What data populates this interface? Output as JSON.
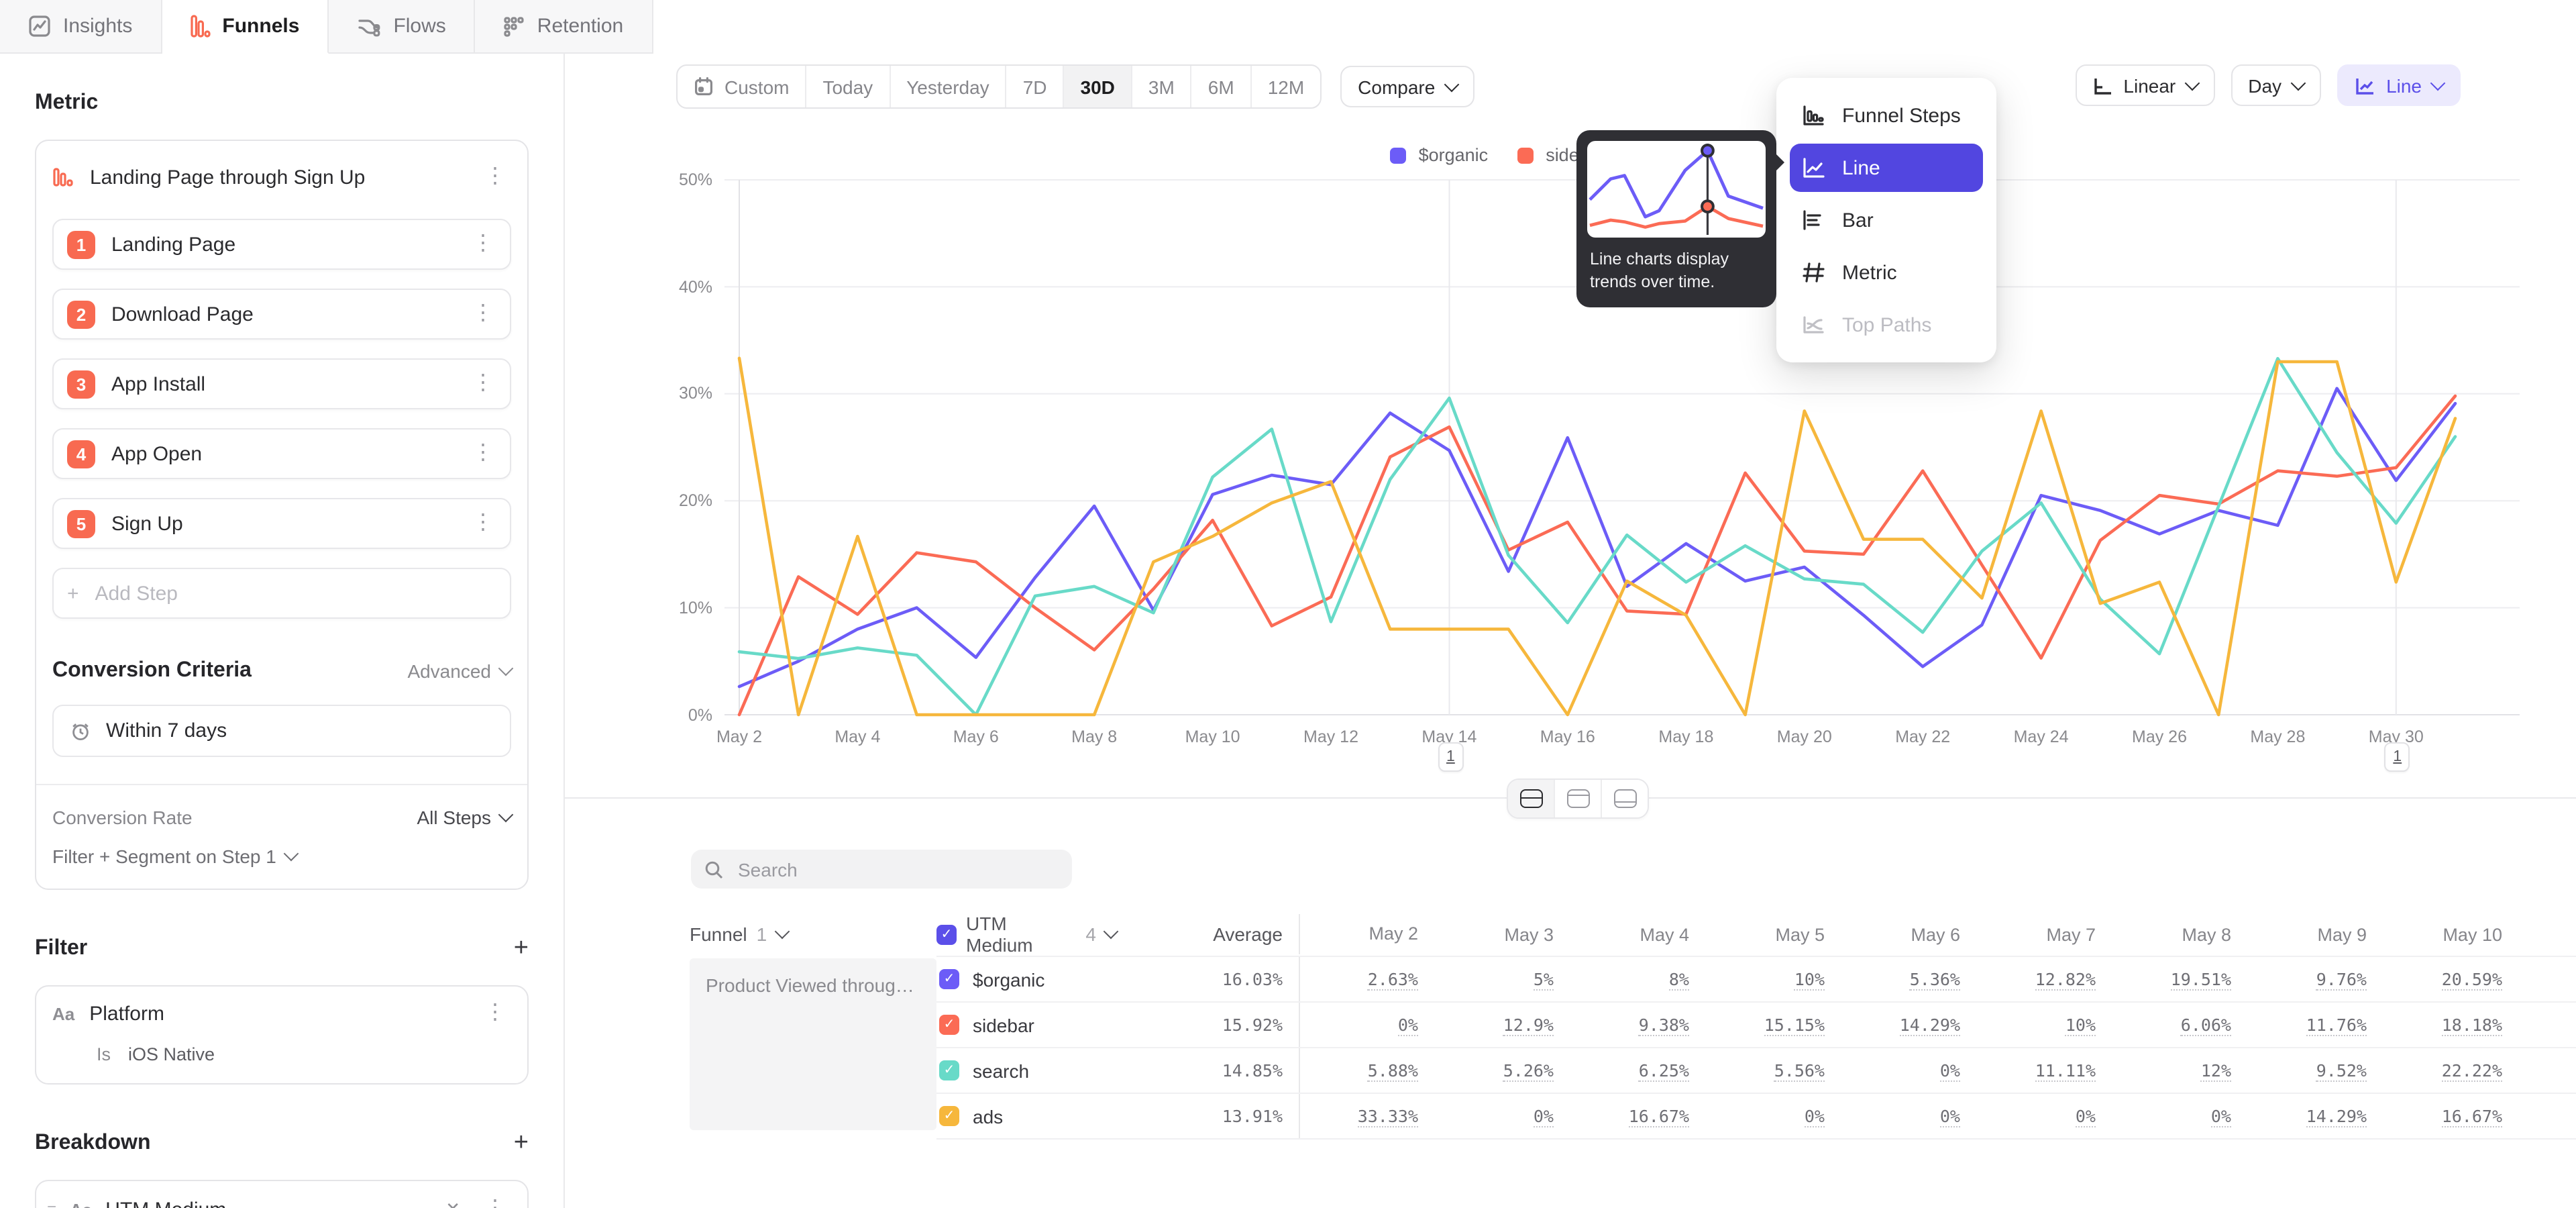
{
  "tabs": [
    {
      "id": "insights",
      "label": "Insights",
      "icon": "insights-icon",
      "active": false
    },
    {
      "id": "funnels",
      "label": "Funnels",
      "icon": "funnels-icon",
      "active": true
    },
    {
      "id": "flows",
      "label": "Flows",
      "icon": "flows-icon",
      "active": false
    },
    {
      "id": "retention",
      "label": "Retention",
      "icon": "retention-icon",
      "active": false
    }
  ],
  "sidebar": {
    "metric_heading": "Metric",
    "funnel_title": "Landing Page through Sign Up",
    "steps": [
      "Landing Page",
      "Download Page",
      "App Install",
      "App Open",
      "Sign Up"
    ],
    "add_step_label": "Add Step",
    "conversion_criteria_heading": "Conversion Criteria",
    "advanced_label": "Advanced",
    "conversion_window": "Within 7 days",
    "conversion_rate_label": "Conversion Rate",
    "conversion_rate_value": "All Steps",
    "filter_segment_label": "Filter + Segment on Step 1",
    "filter_heading": "Filter",
    "type_icon_label": "Aa",
    "filter_property": "Platform",
    "filter_operator": "Is",
    "filter_value": "iOS Native",
    "breakdown_heading": "Breakdown",
    "breakdown_property": "UTM Medium"
  },
  "controls": {
    "date_ranges": [
      "Custom",
      "Today",
      "Yesterday",
      "7D",
      "30D",
      "3M",
      "6M",
      "12M"
    ],
    "active_range": "30D",
    "compare_label": "Compare",
    "scale_label": "Linear",
    "granularity_label": "Day",
    "chart_type_label": "Line"
  },
  "chart_menu": {
    "items": [
      {
        "label": "Funnel Steps",
        "icon": "funnel-steps-icon",
        "selected": false,
        "disabled": false
      },
      {
        "label": "Line",
        "icon": "line-chart-icon",
        "selected": true,
        "disabled": false
      },
      {
        "label": "Bar",
        "icon": "bar-chart-icon",
        "selected": false,
        "disabled": false
      },
      {
        "label": "Metric",
        "icon": "metric-icon",
        "selected": false,
        "disabled": false
      },
      {
        "label": "Top Paths",
        "icon": "top-paths-icon",
        "selected": false,
        "disabled": true
      }
    ],
    "selected_color": "#5246e0",
    "tooltip_text": "Line charts display trends over time.",
    "preview": {
      "cursor_x": 68,
      "series": [
        {
          "color": "#6C5CF7",
          "points": [
            [
              0,
              38
            ],
            [
              12,
              62
            ],
            [
              20,
              66
            ],
            [
              32,
              18
            ],
            [
              40,
              25
            ],
            [
              55,
              72
            ],
            [
              68,
              95
            ],
            [
              80,
              42
            ],
            [
              100,
              28
            ]
          ]
        },
        {
          "color": "#FB6B55",
          "points": [
            [
              0,
              8
            ],
            [
              12,
              14
            ],
            [
              20,
              12
            ],
            [
              32,
              6
            ],
            [
              40,
              10
            ],
            [
              55,
              13
            ],
            [
              68,
              30
            ],
            [
              80,
              16
            ],
            [
              100,
              7
            ]
          ]
        }
      ]
    }
  },
  "chart_data": {
    "type": "line",
    "title": "",
    "xlabel": "",
    "ylabel": "",
    "ylim": [
      0,
      50
    ],
    "y_ticks": [
      "0%",
      "10%",
      "20%",
      "30%",
      "40%",
      "50%"
    ],
    "grid": true,
    "legend_position": "top",
    "x": [
      "May 2",
      "May 3",
      "May 4",
      "May 5",
      "May 6",
      "May 7",
      "May 8",
      "May 9",
      "May 10",
      "May 11",
      "May 12",
      "May 13",
      "May 14",
      "May 15",
      "May 16",
      "May 17",
      "May 18",
      "May 19",
      "May 20",
      "May 21",
      "May 22",
      "May 23",
      "May 24",
      "May 25",
      "May 26",
      "May 27",
      "May 28",
      "May 29",
      "May 30",
      "May 31"
    ],
    "x_tick_every": 2,
    "series": [
      {
        "name": "$organic",
        "color": "#6C5CF7",
        "values": [
          2.63,
          5,
          8,
          10,
          5.36,
          12.82,
          19.51,
          9.76,
          20.59,
          22.4,
          21.5,
          28.2,
          24.7,
          13.4,
          25.9,
          12,
          16,
          12.5,
          13.8,
          9.3,
          4.5,
          8.4,
          20.5,
          19.1,
          16.9,
          19.1,
          17.7,
          30.5,
          21.9,
          29.1
        ]
      },
      {
        "name": "sidebar",
        "color": "#FB6B55",
        "values": [
          0,
          12.9,
          9.38,
          15.15,
          14.29,
          10,
          6.06,
          11.76,
          18.18,
          8.3,
          11,
          24.1,
          26.9,
          15.4,
          18,
          9.7,
          9.4,
          22.6,
          15.3,
          15,
          22.8,
          14,
          5.3,
          16.3,
          20.5,
          19.7,
          22.8,
          22.3,
          23.1,
          29.8
        ]
      },
      {
        "name": "search",
        "color": "#68DAC8",
        "values": [
          5.88,
          5.26,
          6.25,
          5.56,
          0,
          11.11,
          12,
          9.52,
          22.22,
          26.7,
          8.7,
          22,
          29.6,
          14.9,
          8.6,
          16.8,
          12.4,
          15.8,
          12.7,
          12.2,
          7.7,
          15.3,
          19.8,
          10.8,
          5.7,
          19.5,
          33.3,
          24.5,
          17.9,
          26
        ]
      },
      {
        "name": "ads",
        "color": "#F6B73C",
        "values": [
          33.33,
          0,
          16.67,
          0,
          0,
          0,
          0,
          14.29,
          16.67,
          19.8,
          21.8,
          8,
          8,
          8,
          0,
          12.5,
          9.3,
          0,
          28.4,
          16.4,
          16.4,
          10.9,
          28.4,
          10.4,
          12.4,
          0,
          33,
          33,
          12.4,
          27.7
        ]
      }
    ],
    "annotations": [
      {
        "x": "May 14",
        "label": "1"
      },
      {
        "x": "May 30",
        "label": "1"
      }
    ]
  },
  "table": {
    "search_placeholder": "Search",
    "funnel_header": "Funnel",
    "funnel_count": "1",
    "breakdown_header": "UTM Medium",
    "breakdown_count": "4",
    "breakdown_checkbox_color": "#5b4fe9",
    "average_header": "Average",
    "date_headers": [
      "May 2",
      "May 3",
      "May 4",
      "May 5",
      "May 6",
      "May 7",
      "May 8",
      "May 9",
      "May 10"
    ],
    "funnel_name": "Product Viewed through P...",
    "rows": [
      {
        "name": "$organic",
        "color": "#6C5CF7",
        "average": "16.03%",
        "values": [
          "2.63%",
          "5%",
          "8%",
          "10%",
          "5.36%",
          "12.82%",
          "19.51%",
          "9.76%",
          "20.59%"
        ]
      },
      {
        "name": "sidebar",
        "color": "#FB6B55",
        "average": "15.92%",
        "values": [
          "0%",
          "12.9%",
          "9.38%",
          "15.15%",
          "14.29%",
          "10%",
          "6.06%",
          "11.76%",
          "18.18%"
        ]
      },
      {
        "name": "search",
        "color": "#68DAC8",
        "average": "14.85%",
        "values": [
          "5.88%",
          "5.26%",
          "6.25%",
          "5.56%",
          "0%",
          "11.11%",
          "12%",
          "9.52%",
          "22.22%"
        ]
      },
      {
        "name": "ads",
        "color": "#F6B73C",
        "average": "13.91%",
        "values": [
          "33.33%",
          "0%",
          "16.67%",
          "0%",
          "0%",
          "0%",
          "0%",
          "14.29%",
          "16.67%"
        ]
      }
    ]
  }
}
